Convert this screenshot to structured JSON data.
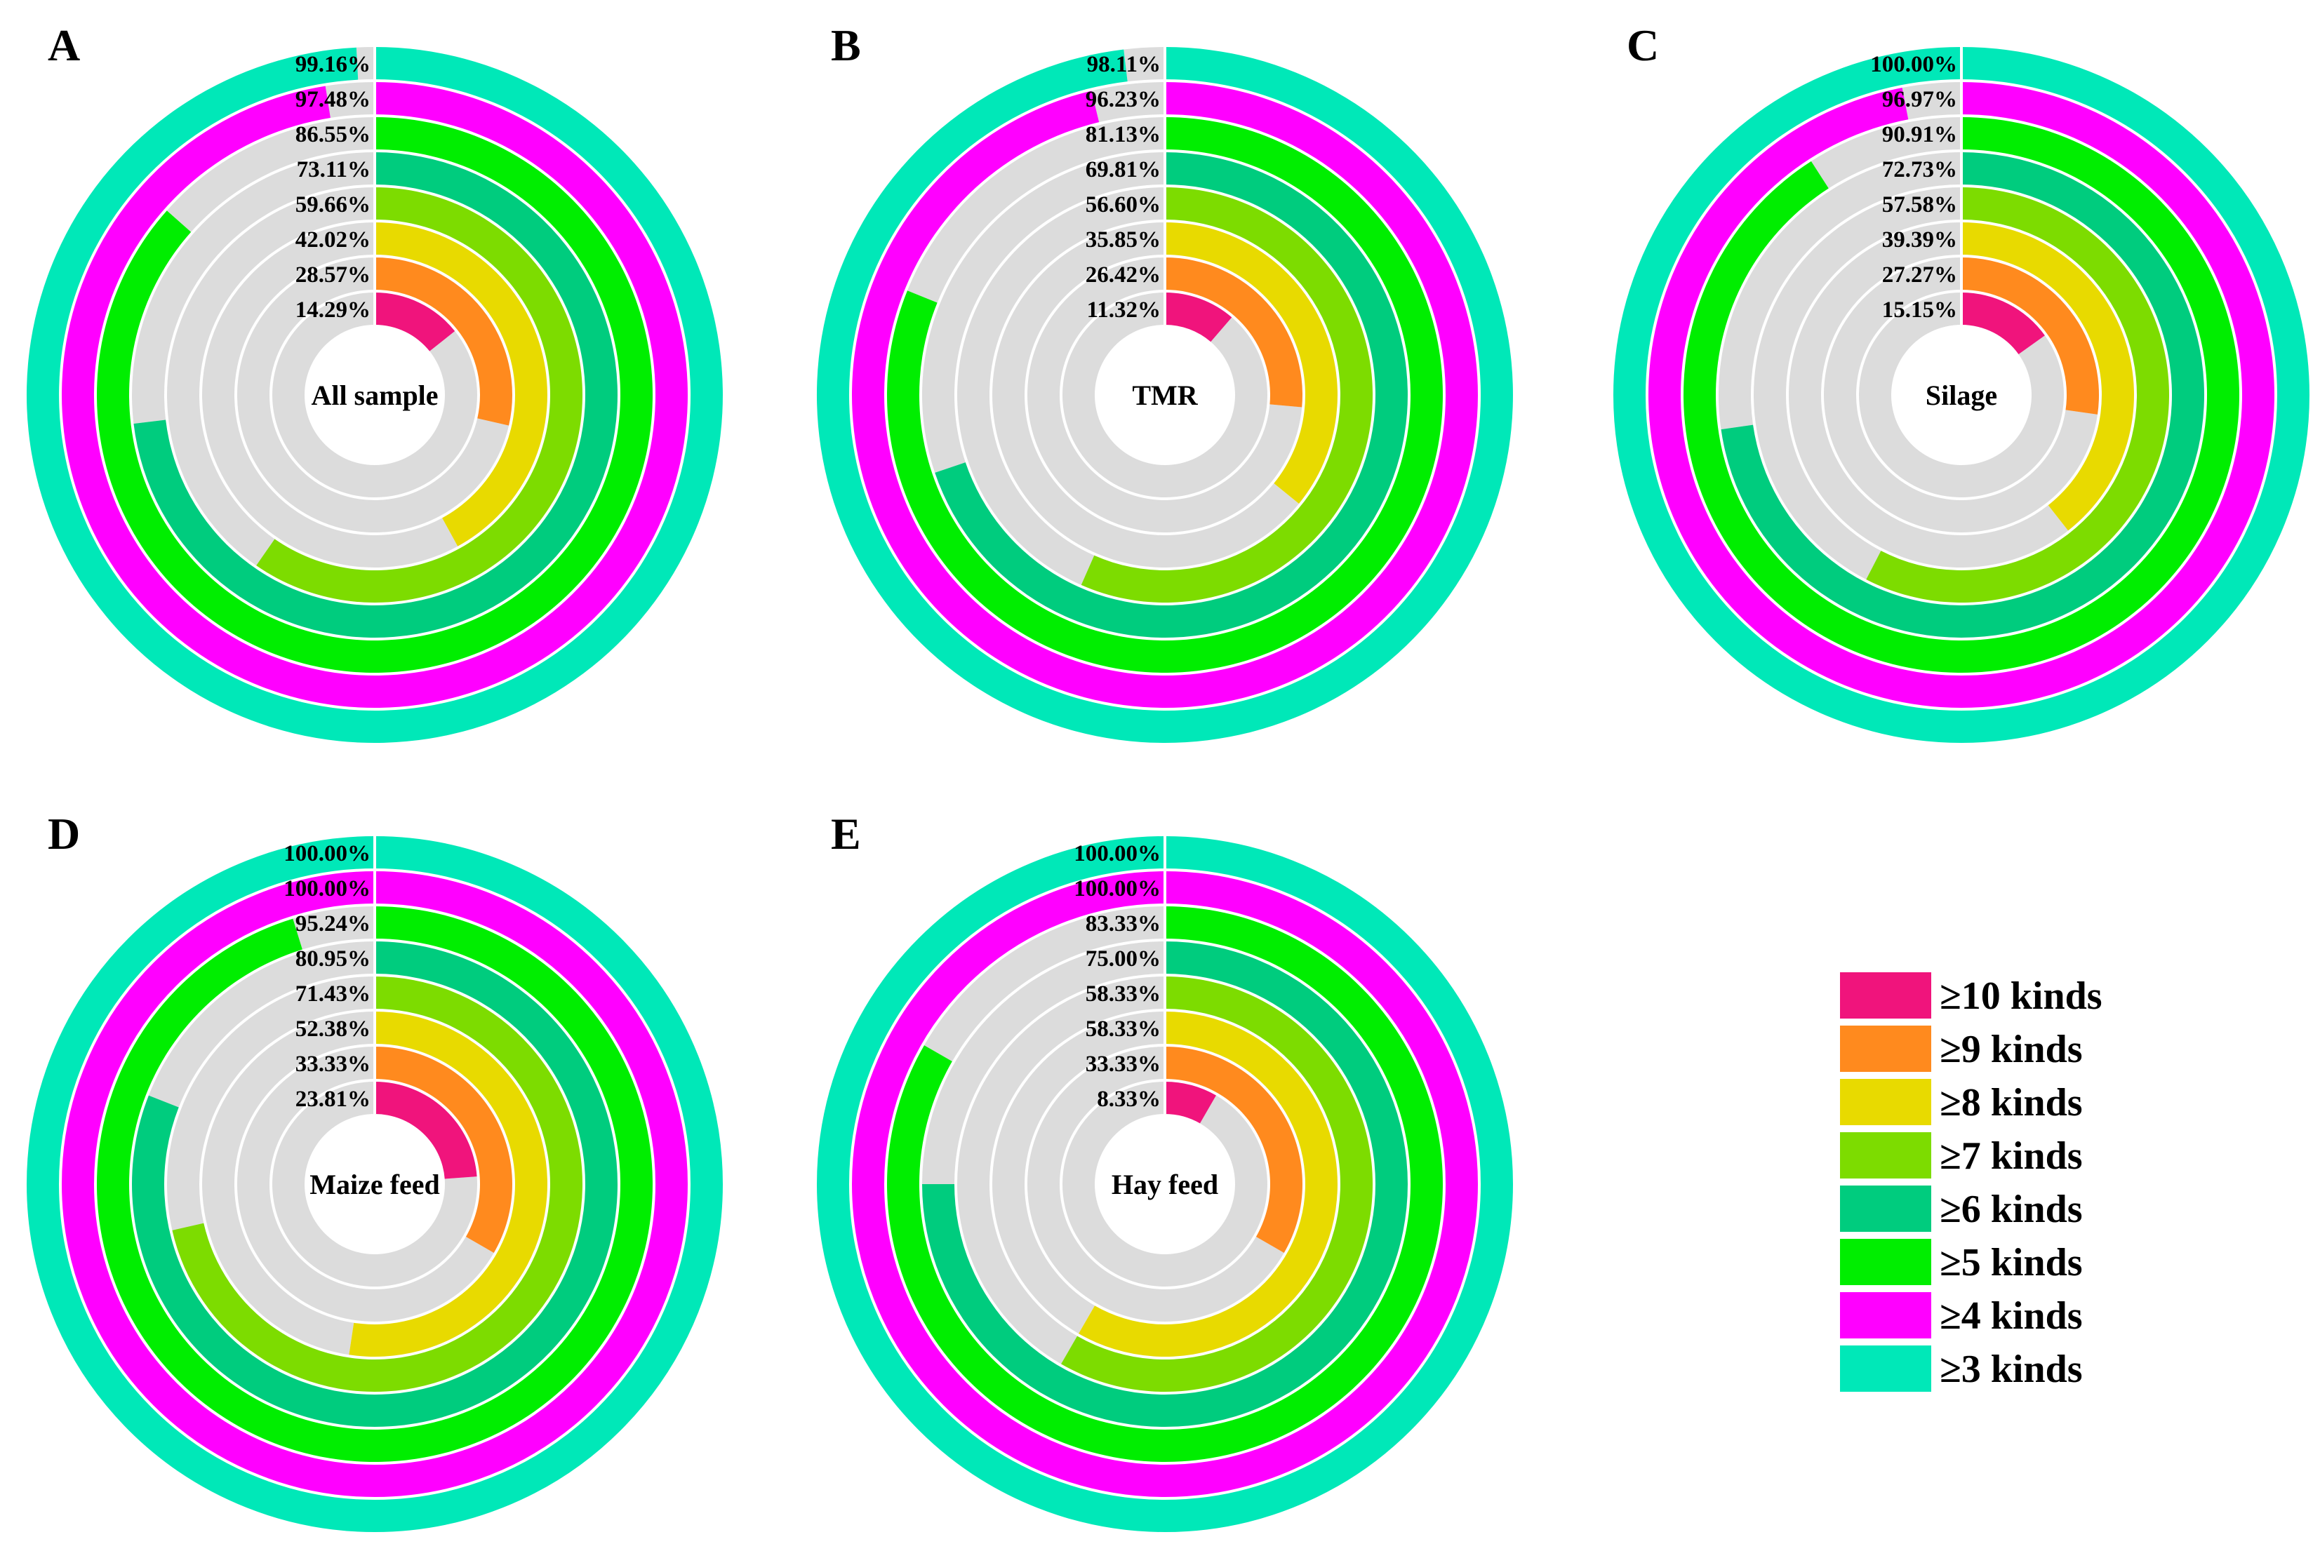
{
  "chart_data": [
    {
      "type": "radial-bar",
      "panel": "A",
      "center_label": "All sample",
      "categories": [
        "≥10 kinds",
        "≥9 kinds",
        "≥8 kinds",
        "≥7 kinds",
        "≥6 kinds",
        "≥5 kinds",
        "≥4 kinds",
        "≥3 kinds"
      ],
      "values": [
        14.29,
        28.57,
        42.02,
        59.66,
        73.11,
        86.55,
        97.48,
        99.16
      ],
      "labels": [
        "14.29%",
        "28.57%",
        "42.02%",
        "59.66%",
        "73.11%",
        "86.55%",
        "97.48%",
        "99.16%"
      ],
      "ylim": [
        0,
        100
      ]
    },
    {
      "type": "radial-bar",
      "panel": "B",
      "center_label": "TMR",
      "categories": [
        "≥10 kinds",
        "≥9 kinds",
        "≥8 kinds",
        "≥7 kinds",
        "≥6 kinds",
        "≥5 kinds",
        "≥4 kinds",
        "≥3 kinds"
      ],
      "values": [
        11.32,
        26.42,
        35.85,
        56.6,
        69.81,
        81.13,
        96.23,
        98.11
      ],
      "labels": [
        "11.32%",
        "26.42%",
        "35.85%",
        "56.60%",
        "69.81%",
        "81.13%",
        "96.23%",
        "98.11%"
      ],
      "ylim": [
        0,
        100
      ]
    },
    {
      "type": "radial-bar",
      "panel": "C",
      "center_label": "Silage",
      "categories": [
        "≥10 kinds",
        "≥9 kinds",
        "≥8 kinds",
        "≥7 kinds",
        "≥6 kinds",
        "≥5 kinds",
        "≥4 kinds",
        "≥3 kinds"
      ],
      "values": [
        15.15,
        27.27,
        39.39,
        57.58,
        72.73,
        90.91,
        96.97,
        100.0
      ],
      "labels": [
        "15.15%",
        "27.27%",
        "39.39%",
        "57.58%",
        "72.73%",
        "90.91%",
        "96.97%",
        "100.00%"
      ],
      "ylim": [
        0,
        100
      ]
    },
    {
      "type": "radial-bar",
      "panel": "D",
      "center_label": "Maize feed",
      "categories": [
        "≥10 kinds",
        "≥9 kinds",
        "≥8 kinds",
        "≥7 kinds",
        "≥6 kinds",
        "≥5 kinds",
        "≥4 kinds",
        "≥3 kinds"
      ],
      "values": [
        23.81,
        33.33,
        52.38,
        71.43,
        80.95,
        95.24,
        100.0,
        100.0
      ],
      "labels": [
        "23.81%",
        "33.33%",
        "52.38%",
        "71.43%",
        "80.95%",
        "95.24%",
        "100.00%",
        "100.00%"
      ],
      "ylim": [
        0,
        100
      ]
    },
    {
      "type": "radial-bar",
      "panel": "E",
      "center_label": "Hay feed",
      "categories": [
        "≥10 kinds",
        "≥9 kinds",
        "≥8 kinds",
        "≥7 kinds",
        "≥6 kinds",
        "≥5 kinds",
        "≥4 kinds",
        "≥3 kinds"
      ],
      "values": [
        8.33,
        33.33,
        58.33,
        58.33,
        75.0,
        83.33,
        100.0,
        100.0
      ],
      "labels": [
        "8.33%",
        "33.33%",
        "58.33%",
        "58.33%",
        "75.00%",
        "83.33%",
        "100.00%",
        "100.00%"
      ],
      "ylim": [
        0,
        100
      ]
    }
  ],
  "legend": {
    "position": "bottom-right",
    "items": [
      {
        "label": "≥10 kinds",
        "color": "#F0147C"
      },
      {
        "label": "≥9 kinds",
        "color": "#FF8A1E"
      },
      {
        "label": "≥8 kinds",
        "color": "#E8DA00"
      },
      {
        "label": "≥7 kinds",
        "color": "#7DDC00"
      },
      {
        "label": "≥6 kinds",
        "color": "#00CC7E"
      },
      {
        "label": "≥5 kinds",
        "color": "#00EE00"
      },
      {
        "label": "≥4 kinds",
        "color": "#FF00FF"
      },
      {
        "label": "≥3 kinds",
        "color": "#00E8B8"
      }
    ]
  },
  "colors": {
    "track": "#DCDCDC",
    "ring_colors": [
      "#F0147C",
      "#FF8A1E",
      "#E8DA00",
      "#7DDC00",
      "#00CC7E",
      "#00EE00",
      "#FF00FF",
      "#00E8B8"
    ]
  }
}
